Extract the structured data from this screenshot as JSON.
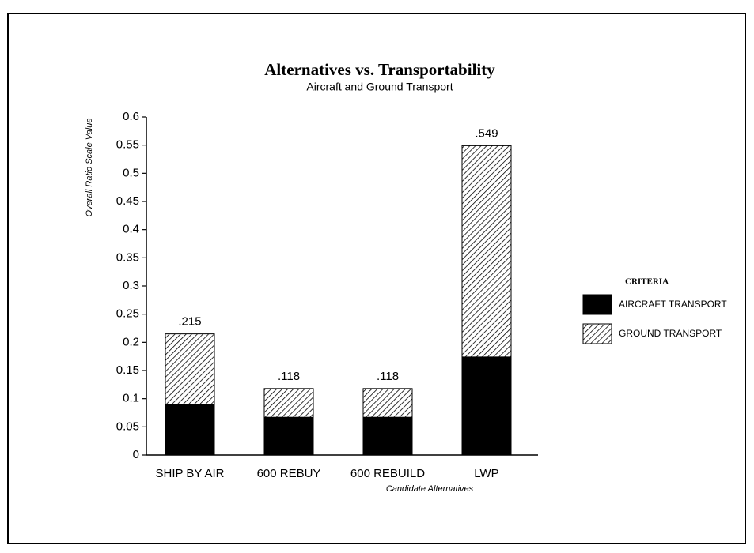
{
  "chart_data": {
    "type": "stacked_bar",
    "title": "Alternatives vs. Transportability",
    "subtitle": "Aircraft and Ground Transport",
    "y_label": "Overall Ratio Scale Value",
    "x_label": "Candidate Alternatives",
    "categories": [
      "SHIP BY AIR",
      "600 REBUY",
      "600 REBUILD",
      "LWP"
    ],
    "series": [
      {
        "name": "AIRCRAFT TRANSPORT",
        "color": "#000000",
        "pattern": "solid",
        "values": [
          0.09,
          0.067,
          0.067,
          0.174
        ]
      },
      {
        "name": "GROUND TRANSPORT",
        "color": "#000000",
        "pattern": "hatch",
        "values": [
          0.125,
          0.051,
          0.051,
          0.375
        ]
      }
    ],
    "totals": [
      0.215,
      0.118,
      0.118,
      0.549
    ],
    "total_labels": [
      ".215",
      ".118",
      ".118",
      ".549"
    ],
    "legend_title": "CRITERIA",
    "legend_position": "right",
    "ylim": [
      0,
      0.6
    ],
    "yticks": [
      0,
      0.05,
      0.1,
      0.15,
      0.2,
      0.25,
      0.3,
      0.35,
      0.4,
      0.45,
      0.5,
      0.55,
      0.6
    ],
    "grid": false
  }
}
